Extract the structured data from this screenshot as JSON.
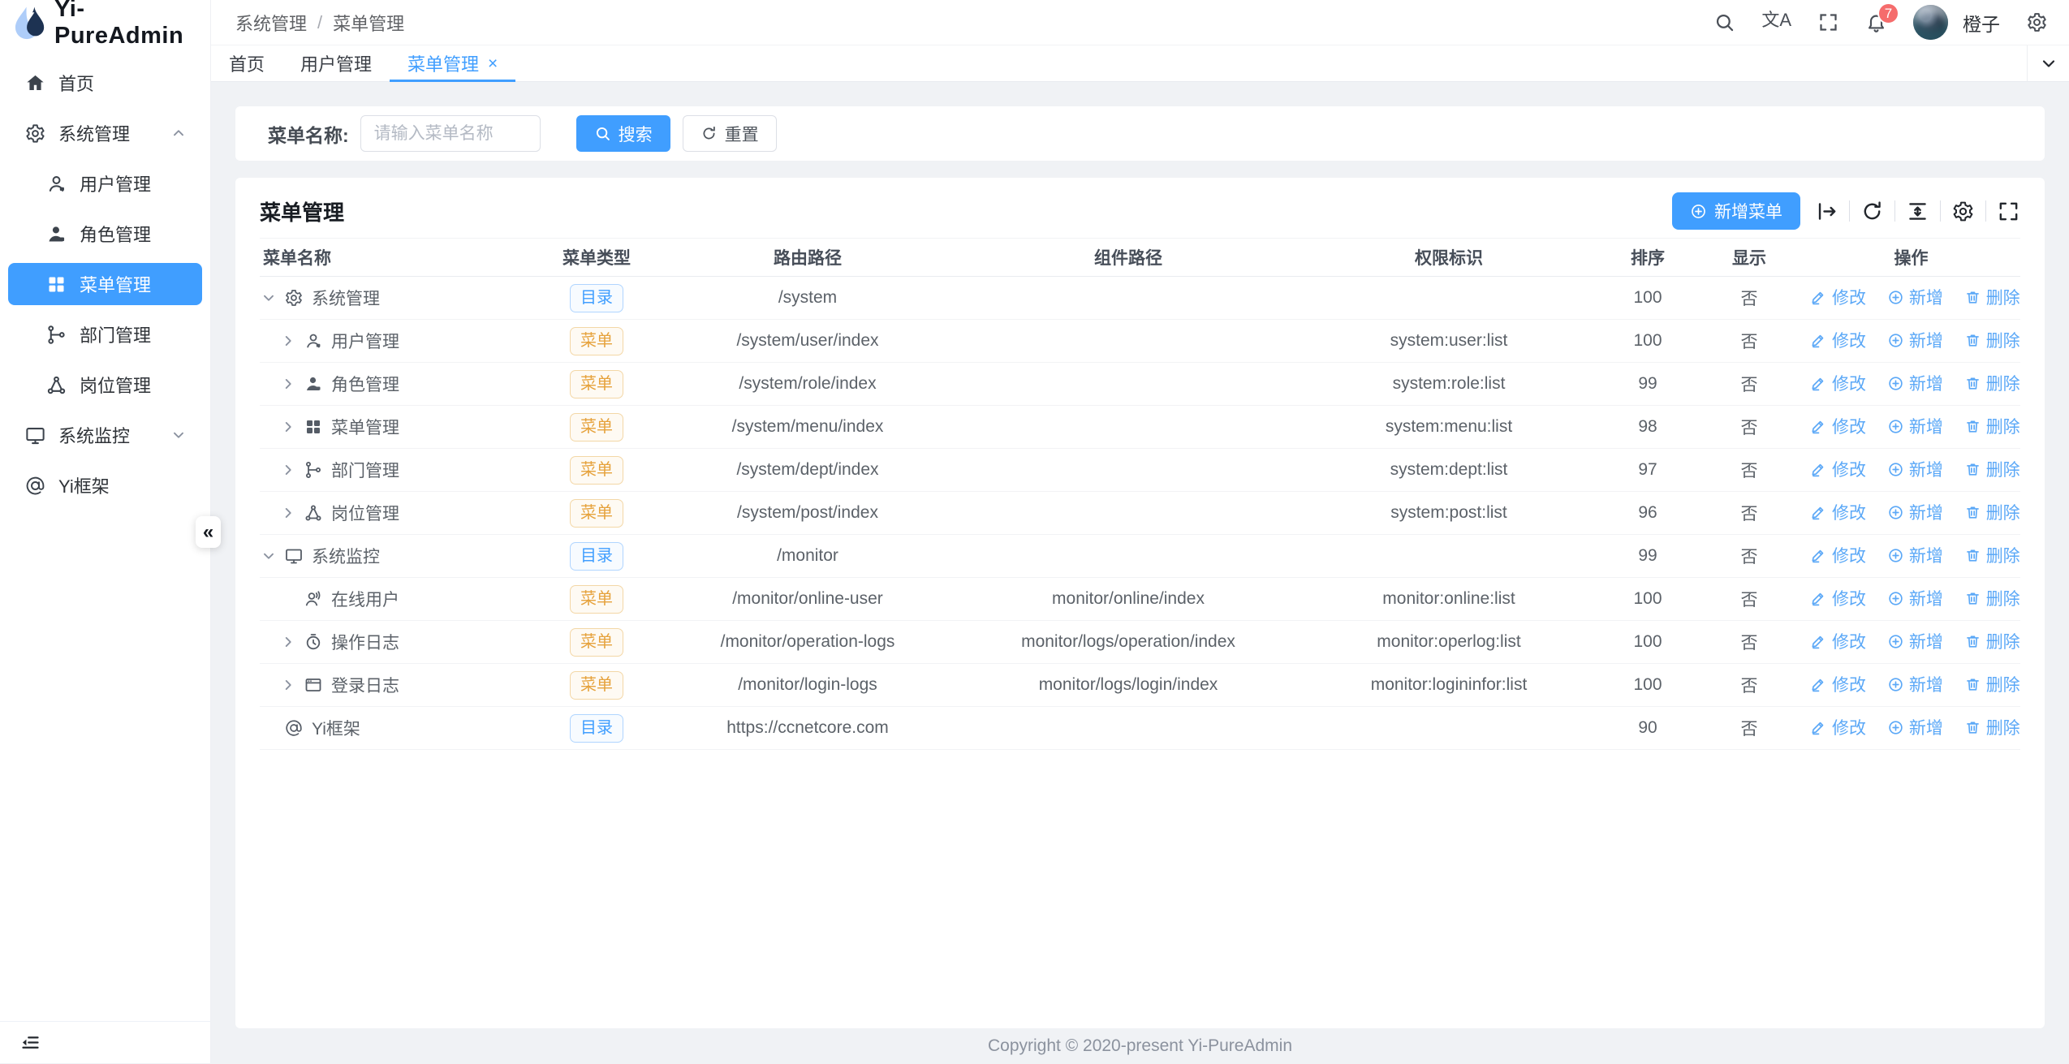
{
  "app": {
    "title": "Yi-PureAdmin"
  },
  "colors": {
    "primary": "#409eff",
    "link": "#5ba8f7",
    "warning": "#e6a23c",
    "badge_red": "#f56c6c",
    "page_bg": "#f0f2f5"
  },
  "header": {
    "breadcrumb": [
      "系统管理",
      "菜单管理"
    ],
    "breadcrumb_separator": "/",
    "translate_glyph": "文A",
    "notification_count": "7",
    "user_name": "橙子"
  },
  "tabs": [
    {
      "label": "首页",
      "active": false,
      "closable": false
    },
    {
      "label": "用户管理",
      "active": false,
      "closable": false
    },
    {
      "label": "菜单管理",
      "active": true,
      "closable": true
    }
  ],
  "tab_close_glyph": "×",
  "sidebar": {
    "collapse_glyph": "«",
    "items": [
      {
        "key": "home",
        "icon": "home",
        "label": "首页",
        "level": 0
      },
      {
        "key": "system",
        "icon": "gear",
        "label": "系统管理",
        "level": 0,
        "chevron": "up"
      },
      {
        "key": "user",
        "icon": "user",
        "label": "用户管理",
        "level": 1
      },
      {
        "key": "role",
        "icon": "role",
        "label": "角色管理",
        "level": 1
      },
      {
        "key": "menu",
        "icon": "grid",
        "label": "菜单管理",
        "level": 1,
        "active": true
      },
      {
        "key": "dept",
        "icon": "dept",
        "label": "部门管理",
        "level": 1
      },
      {
        "key": "post",
        "icon": "post",
        "label": "岗位管理",
        "level": 1
      },
      {
        "key": "monitor",
        "icon": "monitor",
        "label": "系统监控",
        "level": 0,
        "chevron": "down"
      },
      {
        "key": "yi",
        "icon": "at",
        "label": "Yi框架",
        "level": 0
      }
    ]
  },
  "search": {
    "label": "菜单名称:",
    "placeholder": "请输入菜单名称",
    "search_button": "搜索",
    "reset_button": "重置"
  },
  "card": {
    "title": "菜单管理",
    "add_button": "新增菜单",
    "toolbar_icons": [
      "bar-arrow-right",
      "refresh",
      "density",
      "gear",
      "expand"
    ]
  },
  "table": {
    "columns": [
      "菜单名称",
      "菜单类型",
      "路由路径",
      "组件路径",
      "权限标识",
      "排序",
      "显示",
      "操作"
    ],
    "actions": {
      "edit": "修改",
      "add": "新增",
      "delete": "删除"
    },
    "rows": [
      {
        "name": "系统管理",
        "icon": "gear",
        "arrow": "down",
        "level": 0,
        "type": "目录",
        "type_color": "blue",
        "route": "/system",
        "component": "",
        "perm": "",
        "sort": "100",
        "visible": "否"
      },
      {
        "name": "用户管理",
        "icon": "user",
        "arrow": "right",
        "level": 1,
        "type": "菜单",
        "type_color": "orange",
        "route": "/system/user/index",
        "component": "",
        "perm": "system:user:list",
        "sort": "100",
        "visible": "否"
      },
      {
        "name": "角色管理",
        "icon": "role",
        "arrow": "right",
        "level": 1,
        "type": "菜单",
        "type_color": "orange",
        "route": "/system/role/index",
        "component": "",
        "perm": "system:role:list",
        "sort": "99",
        "visible": "否"
      },
      {
        "name": "菜单管理",
        "icon": "grid",
        "arrow": "right",
        "level": 1,
        "type": "菜单",
        "type_color": "orange",
        "route": "/system/menu/index",
        "component": "",
        "perm": "system:menu:list",
        "sort": "98",
        "visible": "否"
      },
      {
        "name": "部门管理",
        "icon": "dept",
        "arrow": "right",
        "level": 1,
        "type": "菜单",
        "type_color": "orange",
        "route": "/system/dept/index",
        "component": "",
        "perm": "system:dept:list",
        "sort": "97",
        "visible": "否"
      },
      {
        "name": "岗位管理",
        "icon": "post",
        "arrow": "right",
        "level": 1,
        "type": "菜单",
        "type_color": "orange",
        "route": "/system/post/index",
        "component": "",
        "perm": "system:post:list",
        "sort": "96",
        "visible": "否"
      },
      {
        "name": "系统监控",
        "icon": "monitor",
        "arrow": "down",
        "level": 0,
        "type": "目录",
        "type_color": "blue",
        "route": "/monitor",
        "component": "",
        "perm": "",
        "sort": "99",
        "visible": "否"
      },
      {
        "name": "在线用户",
        "icon": "online",
        "arrow": "none",
        "level": 1,
        "type": "菜单",
        "type_color": "orange",
        "route": "/monitor/online-user",
        "component": "monitor/online/index",
        "perm": "monitor:online:list",
        "sort": "100",
        "visible": "否"
      },
      {
        "name": "操作日志",
        "icon": "oplog",
        "arrow": "right",
        "level": 1,
        "type": "菜单",
        "type_color": "orange",
        "route": "/monitor/operation-logs",
        "component": "monitor/logs/operation/index",
        "perm": "monitor:operlog:list",
        "sort": "100",
        "visible": "否"
      },
      {
        "name": "登录日志",
        "icon": "loginlog",
        "arrow": "right",
        "level": 1,
        "type": "菜单",
        "type_color": "orange",
        "route": "/monitor/login-logs",
        "component": "monitor/logs/login/index",
        "perm": "monitor:logininfor:list",
        "sort": "100",
        "visible": "否"
      },
      {
        "name": "Yi框架",
        "icon": "at",
        "arrow": "none",
        "level": 0,
        "type": "目录",
        "type_color": "blue",
        "route": "https://ccnetcore.com",
        "component": "",
        "perm": "",
        "sort": "90",
        "visible": "否"
      }
    ]
  },
  "footer": {
    "copyright": "Copyright © 2020-present Yi-PureAdmin"
  }
}
